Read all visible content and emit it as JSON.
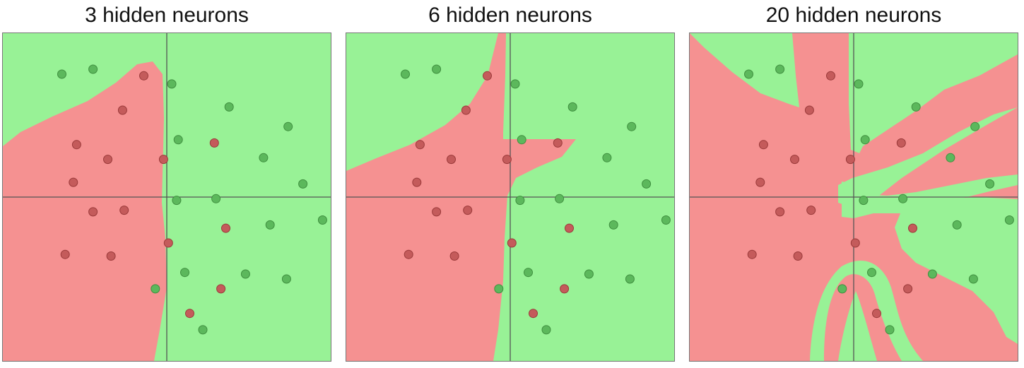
{
  "colors": {
    "class_a_region": "#98f296",
    "class_b_region": "#f59191",
    "class_a_point": "#5cb85c",
    "class_b_point": "#c45b5b",
    "axis": "#555555"
  },
  "panels": [
    {
      "title": "3 hidden neurons",
      "points": [
        {
          "x": -0.64,
          "y": 0.75,
          "c": "green"
        },
        {
          "x": -0.45,
          "y": 0.78,
          "c": "green"
        },
        {
          "x": -0.14,
          "y": 0.74,
          "c": "red"
        },
        {
          "x": 0.03,
          "y": 0.69,
          "c": "green"
        },
        {
          "x": -0.27,
          "y": 0.53,
          "c": "red"
        },
        {
          "x": 0.38,
          "y": 0.55,
          "c": "green"
        },
        {
          "x": 0.74,
          "y": 0.43,
          "c": "green"
        },
        {
          "x": -0.55,
          "y": 0.32,
          "c": "red"
        },
        {
          "x": 0.07,
          "y": 0.35,
          "c": "green"
        },
        {
          "x": 0.29,
          "y": 0.33,
          "c": "red"
        },
        {
          "x": -0.36,
          "y": 0.23,
          "c": "red"
        },
        {
          "x": -0.02,
          "y": 0.23,
          "c": "red"
        },
        {
          "x": 0.59,
          "y": 0.24,
          "c": "green"
        },
        {
          "x": -0.57,
          "y": 0.09,
          "c": "red"
        },
        {
          "x": 0.83,
          "y": 0.08,
          "c": "green"
        },
        {
          "x": 0.06,
          "y": -0.02,
          "c": "green"
        },
        {
          "x": 0.3,
          "y": -0.01,
          "c": "green"
        },
        {
          "x": -0.45,
          "y": -0.09,
          "c": "red"
        },
        {
          "x": -0.26,
          "y": -0.08,
          "c": "red"
        },
        {
          "x": 0.95,
          "y": -0.14,
          "c": "green"
        },
        {
          "x": 0.36,
          "y": -0.19,
          "c": "red"
        },
        {
          "x": 0.63,
          "y": -0.17,
          "c": "green"
        },
        {
          "x": 0.01,
          "y": -0.28,
          "c": "red"
        },
        {
          "x": -0.62,
          "y": -0.35,
          "c": "red"
        },
        {
          "x": -0.34,
          "y": -0.36,
          "c": "red"
        },
        {
          "x": 0.11,
          "y": -0.46,
          "c": "green"
        },
        {
          "x": 0.48,
          "y": -0.47,
          "c": "green"
        },
        {
          "x": 0.73,
          "y": -0.5,
          "c": "green"
        },
        {
          "x": -0.07,
          "y": -0.56,
          "c": "green"
        },
        {
          "x": 0.33,
          "y": -0.56,
          "c": "red"
        },
        {
          "x": 0.14,
          "y": -0.71,
          "c": "red"
        },
        {
          "x": 0.22,
          "y": -0.81,
          "c": "green"
        }
      ]
    },
    {
      "title": "6 hidden neurons",
      "points": [
        {
          "x": -0.64,
          "y": 0.75,
          "c": "green"
        },
        {
          "x": -0.45,
          "y": 0.78,
          "c": "green"
        },
        {
          "x": -0.14,
          "y": 0.74,
          "c": "red"
        },
        {
          "x": 0.03,
          "y": 0.69,
          "c": "green"
        },
        {
          "x": -0.27,
          "y": 0.53,
          "c": "red"
        },
        {
          "x": 0.38,
          "y": 0.55,
          "c": "green"
        },
        {
          "x": 0.74,
          "y": 0.43,
          "c": "green"
        },
        {
          "x": -0.55,
          "y": 0.32,
          "c": "red"
        },
        {
          "x": 0.07,
          "y": 0.35,
          "c": "green"
        },
        {
          "x": 0.29,
          "y": 0.33,
          "c": "red"
        },
        {
          "x": -0.36,
          "y": 0.23,
          "c": "red"
        },
        {
          "x": -0.02,
          "y": 0.23,
          "c": "red"
        },
        {
          "x": 0.59,
          "y": 0.24,
          "c": "green"
        },
        {
          "x": -0.57,
          "y": 0.09,
          "c": "red"
        },
        {
          "x": 0.83,
          "y": 0.08,
          "c": "green"
        },
        {
          "x": 0.06,
          "y": -0.02,
          "c": "green"
        },
        {
          "x": 0.3,
          "y": -0.01,
          "c": "green"
        },
        {
          "x": -0.45,
          "y": -0.09,
          "c": "red"
        },
        {
          "x": -0.26,
          "y": -0.08,
          "c": "red"
        },
        {
          "x": 0.95,
          "y": -0.14,
          "c": "green"
        },
        {
          "x": 0.36,
          "y": -0.19,
          "c": "red"
        },
        {
          "x": 0.63,
          "y": -0.17,
          "c": "green"
        },
        {
          "x": 0.01,
          "y": -0.28,
          "c": "red"
        },
        {
          "x": -0.62,
          "y": -0.35,
          "c": "red"
        },
        {
          "x": -0.34,
          "y": -0.36,
          "c": "red"
        },
        {
          "x": 0.11,
          "y": -0.46,
          "c": "green"
        },
        {
          "x": 0.48,
          "y": -0.47,
          "c": "green"
        },
        {
          "x": 0.73,
          "y": -0.5,
          "c": "green"
        },
        {
          "x": -0.07,
          "y": -0.56,
          "c": "green"
        },
        {
          "x": 0.33,
          "y": -0.56,
          "c": "red"
        },
        {
          "x": 0.14,
          "y": -0.71,
          "c": "red"
        },
        {
          "x": 0.22,
          "y": -0.81,
          "c": "green"
        }
      ]
    },
    {
      "title": "20 hidden neurons",
      "points": [
        {
          "x": -0.64,
          "y": 0.75,
          "c": "green"
        },
        {
          "x": -0.45,
          "y": 0.78,
          "c": "green"
        },
        {
          "x": -0.14,
          "y": 0.74,
          "c": "red"
        },
        {
          "x": 0.03,
          "y": 0.69,
          "c": "green"
        },
        {
          "x": -0.27,
          "y": 0.53,
          "c": "red"
        },
        {
          "x": 0.38,
          "y": 0.55,
          "c": "green"
        },
        {
          "x": 0.74,
          "y": 0.43,
          "c": "green"
        },
        {
          "x": -0.55,
          "y": 0.32,
          "c": "red"
        },
        {
          "x": 0.07,
          "y": 0.35,
          "c": "green"
        },
        {
          "x": 0.29,
          "y": 0.33,
          "c": "red"
        },
        {
          "x": -0.36,
          "y": 0.23,
          "c": "red"
        },
        {
          "x": -0.02,
          "y": 0.23,
          "c": "red"
        },
        {
          "x": 0.59,
          "y": 0.24,
          "c": "green"
        },
        {
          "x": -0.57,
          "y": 0.09,
          "c": "red"
        },
        {
          "x": 0.83,
          "y": 0.08,
          "c": "green"
        },
        {
          "x": 0.06,
          "y": -0.02,
          "c": "green"
        },
        {
          "x": 0.3,
          "y": -0.01,
          "c": "green"
        },
        {
          "x": -0.45,
          "y": -0.09,
          "c": "red"
        },
        {
          "x": -0.26,
          "y": -0.08,
          "c": "red"
        },
        {
          "x": 0.95,
          "y": -0.14,
          "c": "green"
        },
        {
          "x": 0.36,
          "y": -0.19,
          "c": "red"
        },
        {
          "x": 0.63,
          "y": -0.17,
          "c": "green"
        },
        {
          "x": 0.01,
          "y": -0.28,
          "c": "red"
        },
        {
          "x": -0.62,
          "y": -0.35,
          "c": "red"
        },
        {
          "x": -0.34,
          "y": -0.36,
          "c": "red"
        },
        {
          "x": 0.11,
          "y": -0.46,
          "c": "green"
        },
        {
          "x": 0.48,
          "y": -0.47,
          "c": "green"
        },
        {
          "x": 0.73,
          "y": -0.5,
          "c": "green"
        },
        {
          "x": -0.07,
          "y": -0.56,
          "c": "green"
        },
        {
          "x": 0.33,
          "y": -0.56,
          "c": "red"
        },
        {
          "x": 0.14,
          "y": -0.71,
          "c": "red"
        },
        {
          "x": 0.22,
          "y": -0.81,
          "c": "green"
        }
      ]
    }
  ]
}
